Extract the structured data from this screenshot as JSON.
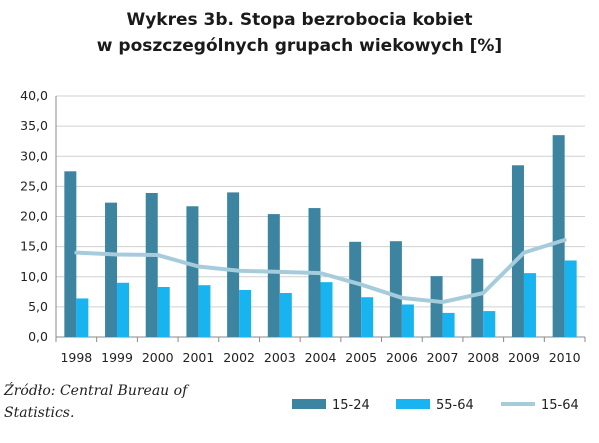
{
  "chart_data": {
    "type": "bar",
    "title_line1": "Wykres 3b. Stopa bezrobocia kobiet",
    "title_line2": "w poszczególnych grupach wiekowych [%]",
    "categories": [
      "1998",
      "1999",
      "2000",
      "2001",
      "2002",
      "2003",
      "2004",
      "2005",
      "2006",
      "2007",
      "2008",
      "2009",
      "2010"
    ],
    "ylim": [
      0,
      40
    ],
    "yticks": [
      "0,0",
      "5,0",
      "10,0",
      "15,0",
      "20,0",
      "25,0",
      "30,0",
      "35,0",
      "40,0"
    ],
    "grid": true,
    "legend_position": "bottom-right",
    "series": [
      {
        "name": "15-24",
        "kind": "bar",
        "color": "#3c84a0",
        "values": [
          27.5,
          22.3,
          23.9,
          21.7,
          24.0,
          20.4,
          21.4,
          15.8,
          15.9,
          10.1,
          13.0,
          28.5,
          33.5
        ]
      },
      {
        "name": "55-64",
        "kind": "bar",
        "color": "#18b4f0",
        "values": [
          6.4,
          9.0,
          8.3,
          8.6,
          7.8,
          7.3,
          9.1,
          6.6,
          5.4,
          4.0,
          4.3,
          10.6,
          12.7
        ]
      },
      {
        "name": "15-64",
        "kind": "line",
        "color": "#a6ccdc",
        "values": [
          14.0,
          13.7,
          13.6,
          11.7,
          11.0,
          10.8,
          10.6,
          8.7,
          6.5,
          5.8,
          7.3,
          14.0,
          16.1
        ]
      }
    ]
  },
  "source": "Źródło: Central Bureau of Statistics."
}
